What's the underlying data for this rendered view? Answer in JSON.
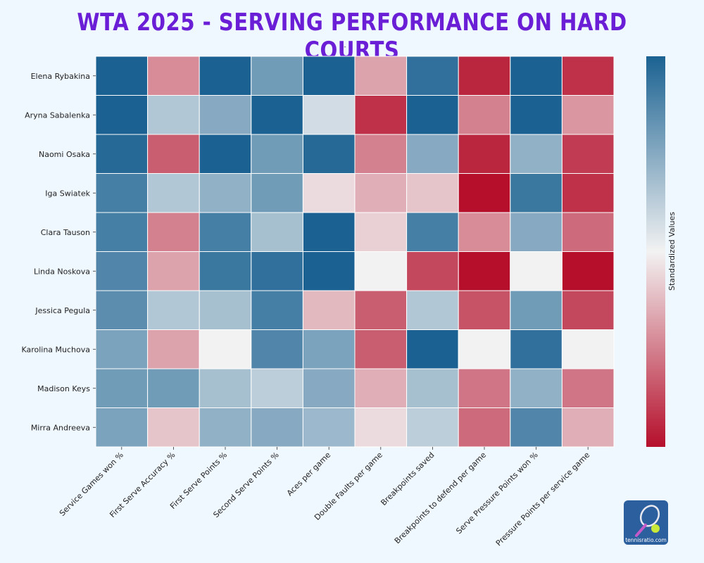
{
  "header": {
    "title": "WTA 2025 - SERVING PERFORMANCE ON HARD COURTS",
    "subtitle": "-"
  },
  "logo": {
    "text": "tennisratio.com"
  },
  "chart_data": {
    "type": "heatmap",
    "title": "WTA 2025 - SERVING PERFORMANCE ON HARD COURTS",
    "rows": [
      "Elena Rybakina",
      "Aryna Sabalenka",
      "Naomi Osaka",
      "Iga Swiatek",
      "Clara Tauson",
      "Linda Noskova",
      "Jessica Pegula",
      "Karolina Muchova",
      "Madison Keys",
      "Mirra Andreeva"
    ],
    "columns": [
      "Service Games won %",
      "First Serve Accuracy %",
      "First Serve Points %",
      "Second Serve Points %",
      "Aces per game",
      "Double Faults per game",
      "Breakpoints saved",
      "Breakpoints to defend per game",
      "Serve Pressure Points won %",
      "Pressure Points per service game"
    ],
    "values": [
      [
        1.0,
        -0.45,
        1.0,
        0.6,
        1.0,
        -0.35,
        0.9,
        -0.9,
        1.0,
        -0.85
      ],
      [
        1.0,
        0.3,
        0.5,
        1.0,
        0.15,
        -0.85,
        1.0,
        -0.5,
        1.0,
        -0.4
      ],
      [
        0.95,
        -0.65,
        1.0,
        0.6,
        0.95,
        -0.5,
        0.5,
        -0.9,
        0.45,
        -0.8
      ],
      [
        0.8,
        0.3,
        0.45,
        0.6,
        -0.1,
        -0.3,
        -0.2,
        -1.0,
        0.85,
        -0.85
      ],
      [
        0.8,
        -0.5,
        0.8,
        0.35,
        1.0,
        -0.15,
        0.8,
        -0.45,
        0.5,
        -0.6
      ],
      [
        0.75,
        -0.35,
        0.85,
        0.9,
        1.0,
        0.0,
        -0.75,
        -1.0,
        0.0,
        -1.0
      ],
      [
        0.7,
        0.3,
        0.35,
        0.8,
        -0.25,
        -0.65,
        0.3,
        -0.7,
        0.6,
        -0.75
      ],
      [
        0.55,
        -0.35,
        0.0,
        0.75,
        0.55,
        -0.65,
        1.0,
        0.0,
        0.9,
        0.0
      ],
      [
        0.6,
        0.6,
        0.35,
        0.25,
        0.5,
        -0.3,
        0.35,
        -0.55,
        0.45,
        -0.55
      ],
      [
        0.55,
        -0.2,
        0.45,
        0.5,
        0.4,
        -0.1,
        0.25,
        -0.6,
        0.75,
        -0.3
      ]
    ],
    "vmin": -1,
    "vmax": 1,
    "colorbar_label": "Standardized Values",
    "colormap": {
      "low": "#b50f2b",
      "mid": "#f2f2f2",
      "high": "#1b6292"
    }
  }
}
